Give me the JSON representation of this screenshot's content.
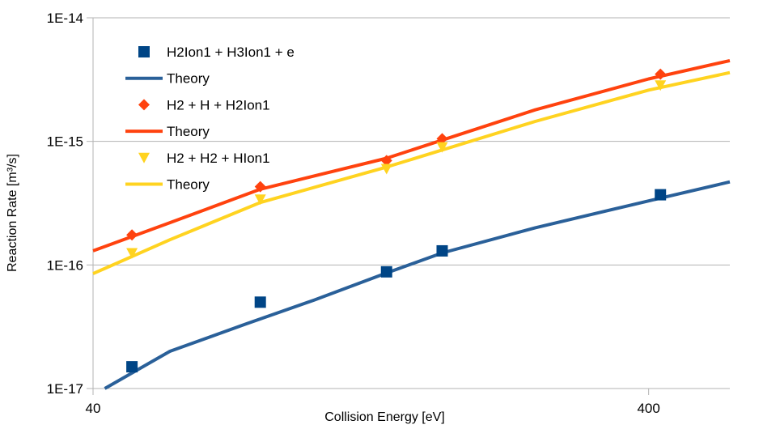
{
  "chart_data": {
    "type": "scatter",
    "title": "",
    "xlabel": "Collision Energy [eV]",
    "ylabel": "Reaction Rate [m³/s]",
    "x_scale": "log",
    "y_scale": "log",
    "xlim": [
      40,
      560
    ],
    "ylim": [
      1e-17,
      1e-14
    ],
    "x_ticks": [
      {
        "value": 40,
        "label": "40"
      },
      {
        "value": 400,
        "label": "400"
      }
    ],
    "y_ticks": [
      {
        "value": 1e-14,
        "label": "1E-14"
      },
      {
        "value": 1e-15,
        "label": "1E-15"
      },
      {
        "value": 1e-16,
        "label": "1E-16"
      },
      {
        "value": 1e-17,
        "label": "1E-17"
      }
    ],
    "grid": "horizontal",
    "legend_position": "top-left",
    "series": [
      {
        "name": "H2Ion1 + H3Ion1 + e",
        "kind": "points",
        "marker": "square",
        "color": "#004586",
        "x": [
          47,
          80,
          135,
          170,
          420
        ],
        "y": [
          1.5e-17,
          5e-17,
          8.8e-17,
          1.3e-16,
          3.7e-16
        ]
      },
      {
        "name": "Theory",
        "kind": "line",
        "color": "#2a6099",
        "x": [
          42,
          55,
          75,
          100,
          135,
          170,
          250,
          400,
          560
        ],
        "y": [
          1e-17,
          2e-17,
          3.3e-17,
          5.2e-17,
          8.6e-17,
          1.25e-16,
          2e-16,
          3.3e-16,
          4.7e-16
        ]
      },
      {
        "name": "H2 + H + H2Ion1",
        "kind": "points",
        "marker": "diamond",
        "color": "#ff420e",
        "x": [
          47,
          80,
          135,
          170,
          420
        ],
        "y": [
          1.75e-16,
          4.3e-16,
          7e-16,
          1.05e-15,
          3.5e-15
        ]
      },
      {
        "name": "Theory",
        "kind": "line",
        "color": "#ff420e",
        "x": [
          40,
          55,
          80,
          135,
          250,
          400,
          560
        ],
        "y": [
          1.3e-16,
          2.2e-16,
          4.1e-16,
          7.3e-16,
          1.8e-15,
          3.2e-15,
          4.5e-15
        ]
      },
      {
        "name": "H2 + H2 + HIon1",
        "kind": "points",
        "marker": "triangle-down",
        "color": "#ffd320",
        "x": [
          47,
          80,
          135,
          170,
          420
        ],
        "y": [
          1.25e-16,
          3.4e-16,
          6e-16,
          9e-16,
          2.85e-15
        ]
      },
      {
        "name": "Theory",
        "kind": "line",
        "color": "#ffd320",
        "x": [
          40,
          55,
          80,
          135,
          250,
          400,
          560
        ],
        "y": [
          8.5e-17,
          1.6e-16,
          3.2e-16,
          6.2e-16,
          1.45e-15,
          2.6e-15,
          3.6e-15
        ]
      }
    ]
  }
}
